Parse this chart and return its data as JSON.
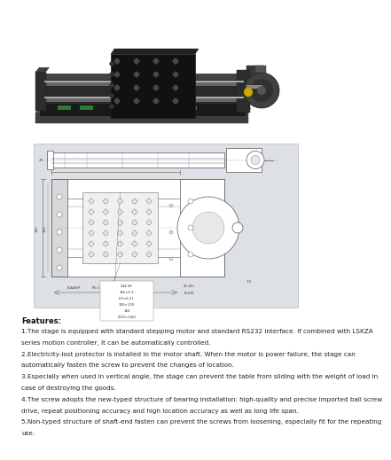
{
  "background_color": "#ffffff",
  "page_width": 3.53,
  "page_height": 5.0,
  "features_title": "Features:",
  "features_text": [
    "1.The stage is equipped with standard stepping motor and standard RS232 interface. If combined with LSKZA",
    "series motion controller, it can be automatically controlled.",
    "2.Electricity-lost protector is installed in the motor shaft. When the motor is power failure, the stage can",
    "automatically fasten the screw to prevent the changes of location.",
    "3.Especially when used in vertical angle, the stage can prevent the table from sliding with the weight of load in",
    "case of destroying the goods.",
    "4.The screw adopts the new-typed structure of bearing installation: high-quality and precise imported ball screw",
    "drive, repeat positioning accuracy and high location accuracy as well as long life span.",
    "5.Non-typed structure of shaft-end fasten can prevent the screws from loosening, especially fit for the repeating",
    "use."
  ],
  "text_fontsize": 5.2,
  "title_fontsize": 6.0,
  "lc": "#555555",
  "lw": 0.4,
  "drawing_bg": "#dde0e5"
}
